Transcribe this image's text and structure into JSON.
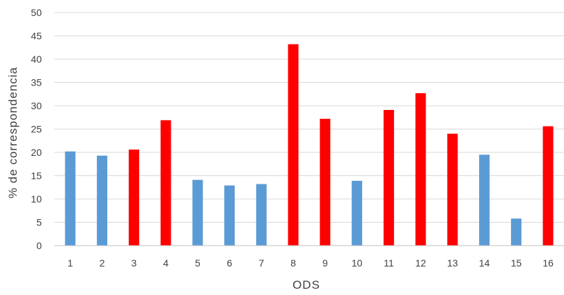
{
  "chart_data": {
    "type": "bar",
    "title": "",
    "xlabel": "ODS",
    "ylabel": "% de correspondencia",
    "categories": [
      "1",
      "2",
      "3",
      "4",
      "5",
      "6",
      "7",
      "8",
      "9",
      "10",
      "11",
      "12",
      "13",
      "14",
      "15",
      "16"
    ],
    "values": [
      20.2,
      19.3,
      20.6,
      26.9,
      14.1,
      12.9,
      13.2,
      43.2,
      27.2,
      13.9,
      29.1,
      32.7,
      24.0,
      19.5,
      5.8,
      25.6
    ],
    "bar_colors": [
      "#5b9bd5",
      "#5b9bd5",
      "#ff0000",
      "#ff0000",
      "#5b9bd5",
      "#5b9bd5",
      "#5b9bd5",
      "#ff0000",
      "#ff0000",
      "#5b9bd5",
      "#ff0000",
      "#ff0000",
      "#ff0000",
      "#5b9bd5",
      "#5b9bd5",
      "#ff0000"
    ],
    "ylim": [
      0,
      50
    ],
    "yticks": [
      0,
      5,
      10,
      15,
      20,
      25,
      30,
      35,
      40,
      45,
      50
    ],
    "grid": true,
    "legend": "none"
  },
  "colors": {
    "blue": "#5b9bd5",
    "red": "#ff0000",
    "grid": "#d9d9d9",
    "text": "#404040"
  }
}
